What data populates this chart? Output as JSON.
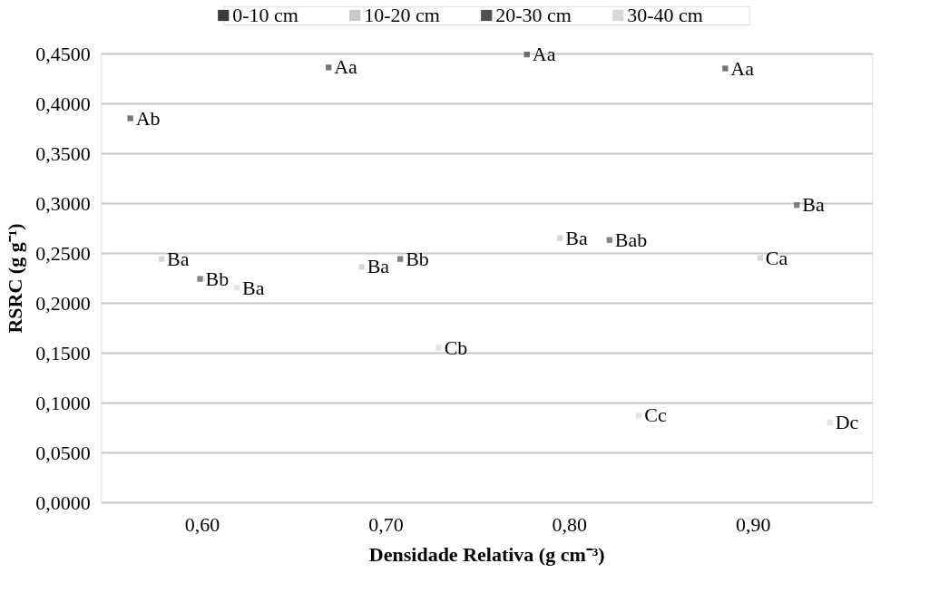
{
  "chart_data": {
    "type": "scatter",
    "marker": "square",
    "xlabel": "Densidade Relativa (g cm⁻³)",
    "ylabel": "RSRC (g g⁻¹)",
    "xlim": [
      0.545,
      0.965
    ],
    "xticks": [
      {
        "value": 0.6,
        "label": "0,60"
      },
      {
        "value": 0.7,
        "label": "0,70"
      },
      {
        "value": 0.8,
        "label": "0,80"
      },
      {
        "value": 0.9,
        "label": "0,90"
      }
    ],
    "ylim": [
      0,
      0.45
    ],
    "yticks": [
      {
        "value": 0,
        "label": "0,0000"
      },
      {
        "value": 0.05,
        "label": "0,0500"
      },
      {
        "value": 0.1,
        "label": "0,1000"
      },
      {
        "value": 0.15,
        "label": "0,1500"
      },
      {
        "value": 0.2,
        "label": "0,2000"
      },
      {
        "value": 0.25,
        "label": "0,2500"
      },
      {
        "value": 0.3,
        "label": "0,3000"
      },
      {
        "value": 0.35,
        "label": "0,3500"
      },
      {
        "value": 0.4,
        "label": "0,4000"
      },
      {
        "value": 0.45,
        "label": "0,4500"
      }
    ],
    "grid": "y",
    "legend": "top",
    "series": [
      {
        "name": "0-10 cm",
        "color": "#3a3a3a",
        "x": [
          0.561,
          0.669,
          0.777,
          0.885
        ],
        "values": [
          0.385,
          0.436,
          0.449,
          0.435
        ],
        "value_labels": [
          "Ab",
          "Aa",
          "Aa",
          "Aa"
        ]
      },
      {
        "name": "10-20  cm",
        "color": "#c8c8c8",
        "x": [
          0.578,
          0.687,
          0.795,
          0.904
        ],
        "values": [
          0.244,
          0.236,
          0.265,
          0.245
        ],
        "value_labels": [
          "Ba",
          "Ba",
          "Ba",
          "Ca"
        ]
      },
      {
        "name": "20-30 cm",
        "color": "#505050",
        "x": [
          0.599,
          0.708,
          0.822,
          0.924
        ],
        "values": [
          0.224,
          0.244,
          0.263,
          0.298
        ],
        "value_labels": [
          "Bb",
          "Bb",
          "Bab",
          "Ba"
        ]
      },
      {
        "name": "30-40 cm",
        "color": "#d8d8d8",
        "x": [
          0.619,
          0.729,
          0.838,
          0.942
        ],
        "values": [
          0.215,
          0.155,
          0.087,
          0.08
        ],
        "value_labels": [
          "Ba",
          "Cb",
          "Cc",
          "Dc"
        ]
      }
    ]
  }
}
